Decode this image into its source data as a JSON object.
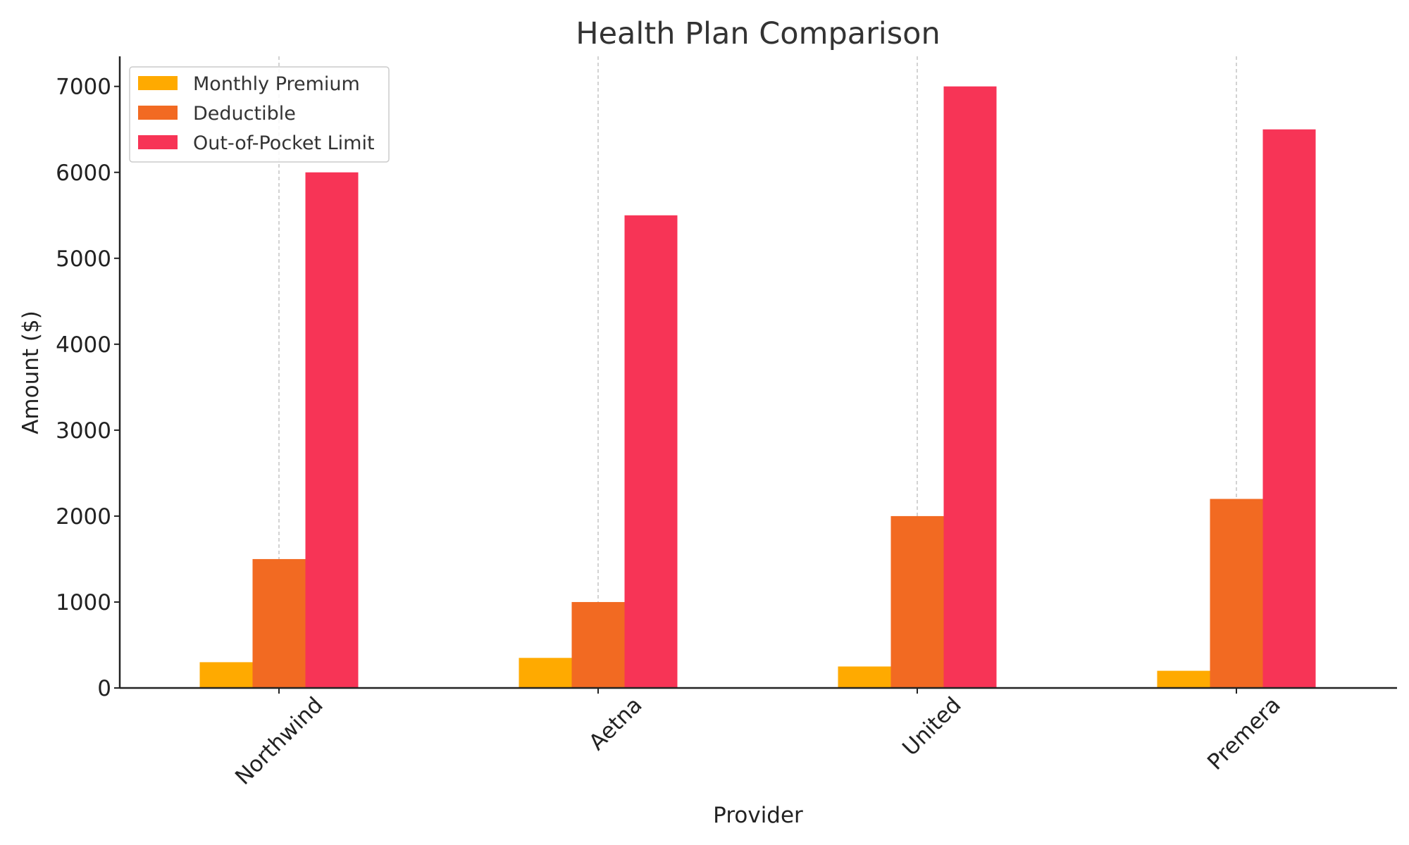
{
  "chart_data": {
    "type": "bar",
    "title": "Health Plan Comparison",
    "xlabel": "Provider",
    "ylabel": "Amount ($)",
    "categories": [
      "Northwind",
      "Aetna",
      "United",
      "Premera"
    ],
    "series": [
      {
        "name": "Monthly Premium",
        "color": "#FFAA00",
        "values": [
          300,
          350,
          250,
          200
        ]
      },
      {
        "name": "Deductible",
        "color": "#F26A22",
        "values": [
          1500,
          1000,
          2000,
          2200
        ]
      },
      {
        "name": "Out-of-Pocket Limit",
        "color": "#F73456",
        "values": [
          6000,
          5500,
          7000,
          6500
        ]
      }
    ],
    "ylim": [
      0,
      7350
    ],
    "yticks": [
      0,
      1000,
      2000,
      3000,
      4000,
      5000,
      6000,
      7000
    ],
    "ytick_labels": [
      "0",
      "1000",
      "2000",
      "3000",
      "4000",
      "5000",
      "6000",
      "7000"
    ],
    "grid": "vertical dashed at categories",
    "legend": "upper-left"
  }
}
